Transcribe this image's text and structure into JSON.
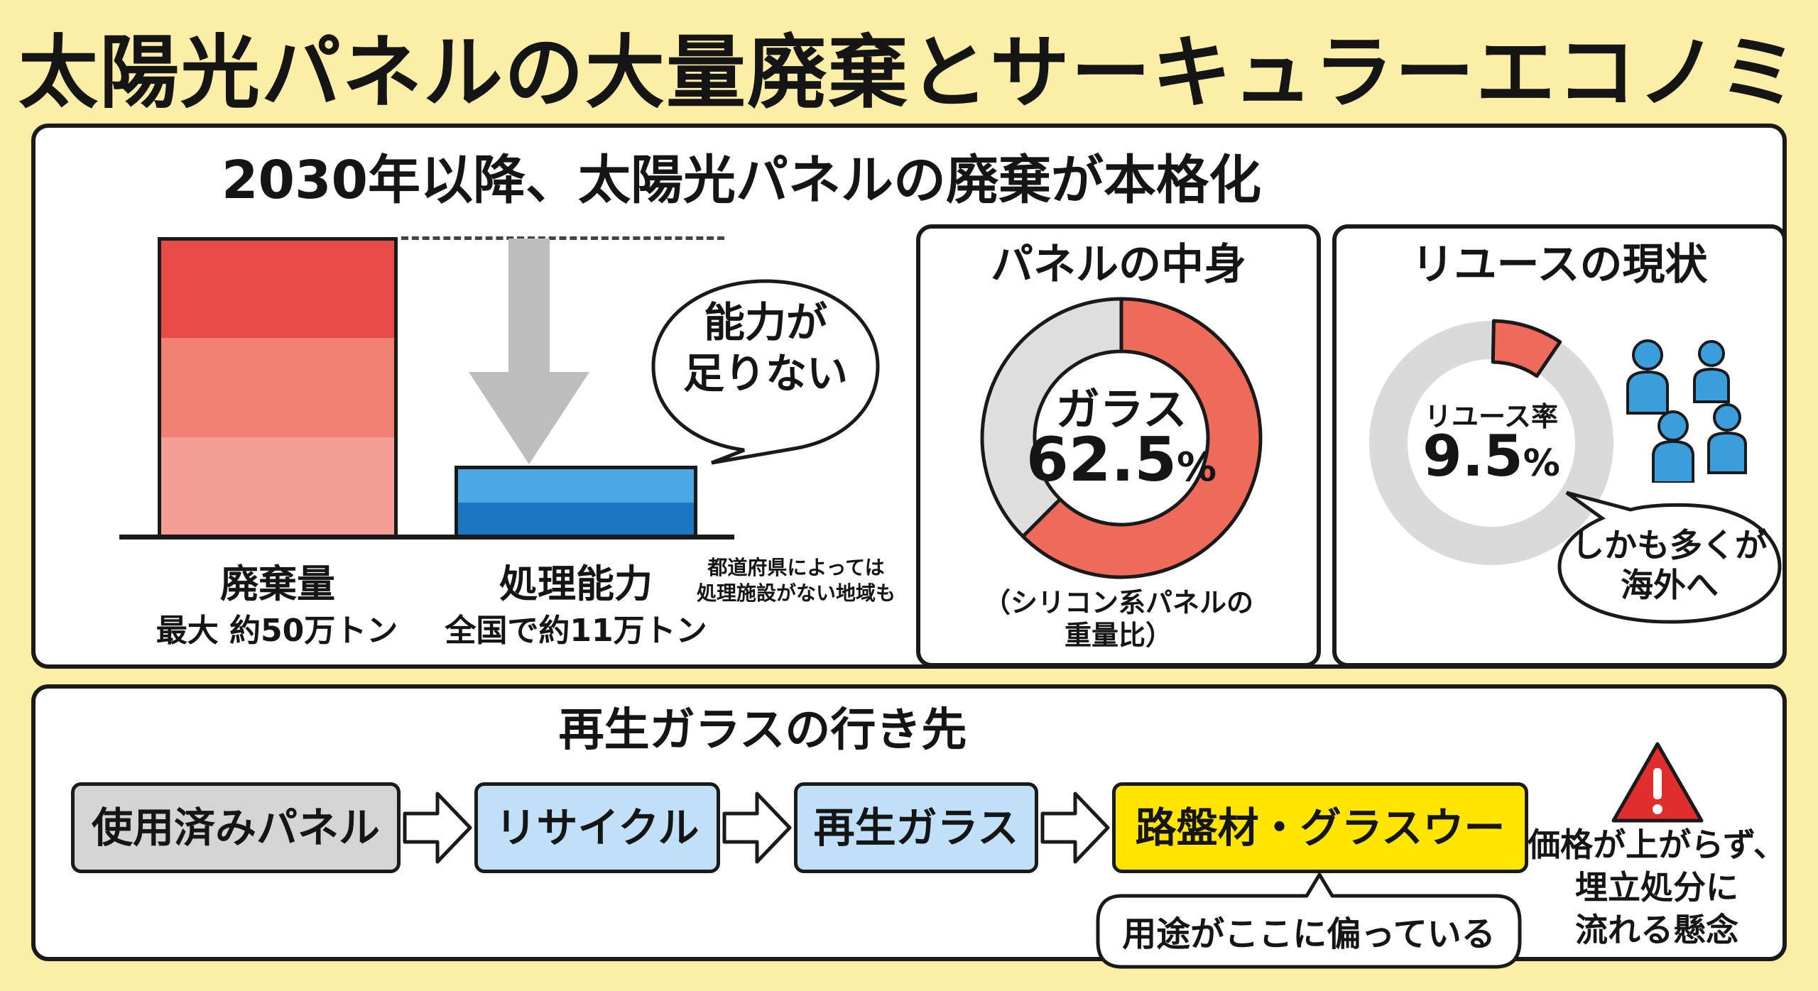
{
  "title": "太陽光パネルの大量廃棄とサーキュラーエコノミー",
  "top_section": {
    "heading": "2030年以降、太陽光パネルの廃棄が本格化",
    "bars": [
      {
        "label": "廃棄量",
        "sublabel": "最大 約50万トン",
        "value": 50,
        "unit": "万トン",
        "color": "#E64B47"
      },
      {
        "label": "処理能力",
        "sublabel": "全国で約11万トン",
        "value": 11,
        "unit": "万トン",
        "color": "#1E75C0"
      }
    ],
    "bubble": {
      "line1": "能力が",
      "line2": "足りない"
    },
    "note": {
      "line1": "都道府県によっては",
      "line2": "処理施設がない地域も"
    }
  },
  "panel_contents": {
    "title": "パネルの中身",
    "center_label": "ガラス",
    "value": "62.5",
    "percent_sign": "%",
    "fraction": 0.625,
    "note_line1": "（シリコン系パネルの",
    "note_line2": "重量比）",
    "colors": {
      "glass": "#EE6B5C",
      "other": "#DEDEDE"
    }
  },
  "reuse": {
    "title": "リユースの現状",
    "center_label": "リユース率",
    "value": "9.5",
    "percent_sign": "%",
    "fraction": 0.095,
    "bubble_line1": "しかも多くが",
    "bubble_line2": "海外へ",
    "colors": {
      "reuse": "#EE6B5C",
      "ring": "#DADADA",
      "people": "#3B9EDC"
    }
  },
  "bottom_section": {
    "heading": "再生ガラスの行き先",
    "flow": [
      "使用済みパネル",
      "リサイクル",
      "再生ガラス",
      "路盤材・グラスウール"
    ],
    "callout": "用途がここに偏っている",
    "warning": {
      "line1": "価格が上がらず、",
      "line2": "埋立処分に",
      "line3": "流れる懸念"
    },
    "colors": {
      "used": "#D4D4D4",
      "recycle": "#BFE0F7",
      "glass": "#BFE0F7",
      "road": "#FFE500",
      "warning": "#E02D2D"
    }
  }
}
